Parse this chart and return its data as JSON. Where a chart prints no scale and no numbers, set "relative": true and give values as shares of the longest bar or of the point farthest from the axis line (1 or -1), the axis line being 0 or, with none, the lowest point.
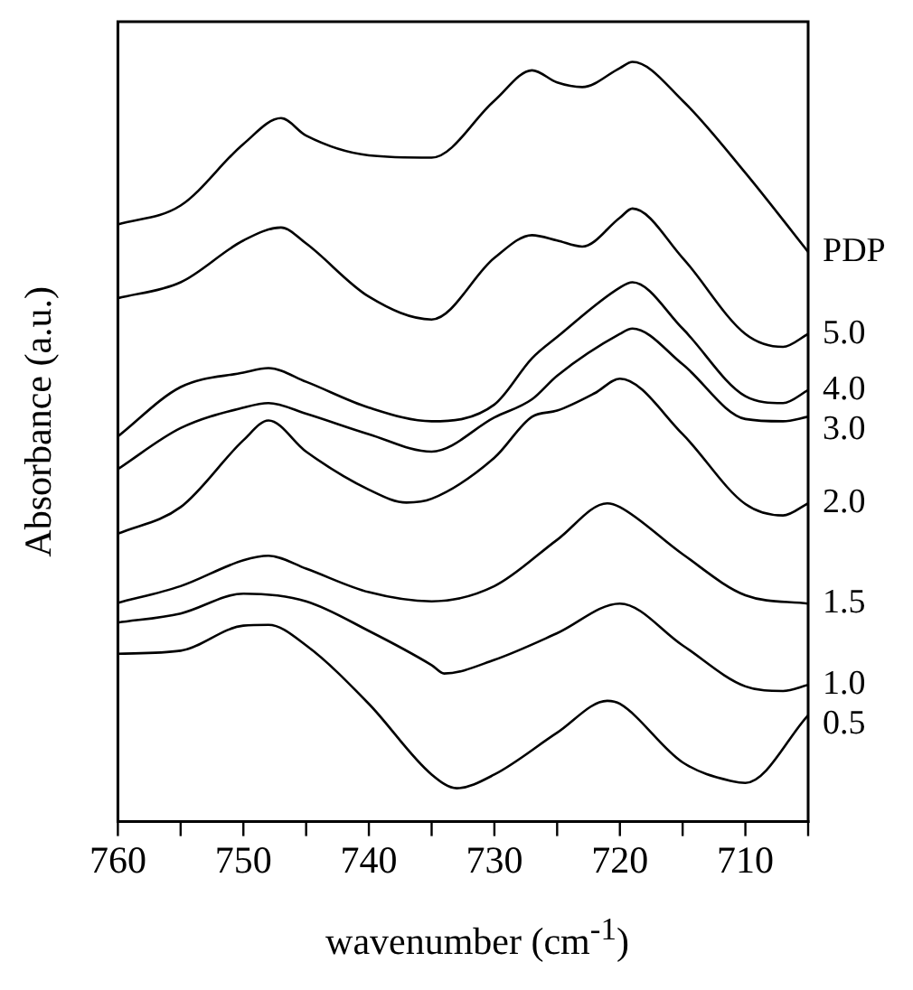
{
  "chart_data": {
    "type": "line",
    "relative": true,
    "xlabel": "wavenumber (cm$^{-1}$)",
    "ylabel": "Absorbance (a.u.)",
    "xlim": [
      760,
      705
    ],
    "xticks": [
      760,
      {
        "value": 755,
        "label": null
      },
      750,
      {
        "value": 745,
        "label": null
      },
      740,
      {
        "value": 735,
        "label": null
      },
      730,
      {
        "value": 725,
        "label": null
      },
      720,
      {
        "value": 715,
        "label": null
      },
      710,
      {
        "value": 705,
        "label": null
      }
    ],
    "grid": false,
    "legend": false,
    "marker": "none",
    "line_style": "solid",
    "series": [
      {
        "name": "PDP",
        "color": "#000000",
        "x": [
          760,
          755,
          750,
          747,
          745,
          740,
          735,
          730,
          727,
          725,
          723,
          720,
          719,
          715,
          710,
          705
        ],
        "values": [
          0.786,
          0.811,
          0.892,
          0.926,
          0.903,
          0.877,
          0.874,
          0.949,
          0.989,
          0.973,
          0.967,
          0.992,
          1.0,
          0.949,
          0.854,
          0.75
        ]
      },
      {
        "name": "5.0",
        "color": "#000000",
        "x": [
          760,
          755,
          750,
          747,
          745,
          740,
          735,
          730,
          727,
          725,
          723,
          720,
          719,
          715,
          710,
          707,
          705
        ],
        "values": [
          0.689,
          0.71,
          0.765,
          0.782,
          0.761,
          0.691,
          0.661,
          0.742,
          0.772,
          0.765,
          0.757,
          0.795,
          0.807,
          0.742,
          0.642,
          0.625,
          0.642
        ]
      },
      {
        "name": "4.0",
        "color": "#000000",
        "x": [
          760,
          755,
          750,
          748,
          745,
          740,
          735,
          730,
          727,
          725,
          720,
          719,
          715,
          710,
          707,
          705
        ],
        "values": [
          0.507,
          0.572,
          0.591,
          0.597,
          0.579,
          0.545,
          0.527,
          0.549,
          0.61,
          0.638,
          0.703,
          0.71,
          0.649,
          0.56,
          0.551,
          0.568
        ]
      },
      {
        "name": "3.0",
        "color": "#000000",
        "x": [
          760,
          755,
          750,
          748,
          745,
          740,
          735,
          730,
          727,
          725,
          720,
          719,
          715,
          710,
          707,
          705
        ],
        "values": [
          0.464,
          0.518,
          0.545,
          0.551,
          0.537,
          0.51,
          0.487,
          0.532,
          0.556,
          0.587,
          0.642,
          0.649,
          0.602,
          0.53,
          0.527,
          0.533
        ]
      },
      {
        "name": "2.0",
        "color": "#000000",
        "x": [
          760,
          755,
          750,
          748,
          745,
          740,
          737,
          735,
          730,
          727,
          725,
          722,
          720,
          715,
          710,
          707,
          705
        ],
        "values": [
          0.379,
          0.414,
          0.502,
          0.528,
          0.487,
          0.437,
          0.42,
          0.425,
          0.479,
          0.533,
          0.541,
          0.564,
          0.583,
          0.51,
          0.418,
          0.403,
          0.419
        ]
      },
      {
        "name": "1.5",
        "color": "#000000",
        "x": [
          760,
          755,
          750,
          748,
          745,
          740,
          735,
          730,
          725,
          721,
          720,
          715,
          710,
          705
        ],
        "values": [
          0.288,
          0.31,
          0.344,
          0.35,
          0.333,
          0.302,
          0.29,
          0.31,
          0.371,
          0.419,
          0.414,
          0.352,
          0.298,
          0.287
        ]
      },
      {
        "name": "1.0",
        "color": "#000000",
        "x": [
          760,
          755,
          750,
          745,
          740,
          735,
          734,
          730,
          725,
          720,
          715,
          710,
          707,
          705
        ],
        "values": [
          0.262,
          0.274,
          0.3,
          0.29,
          0.251,
          0.206,
          0.195,
          0.213,
          0.248,
          0.287,
          0.232,
          0.178,
          0.172,
          0.18
        ]
      },
      {
        "name": "0.5",
        "color": "#000000",
        "x": [
          760,
          755,
          750,
          748,
          745,
          740,
          735,
          733,
          730,
          725,
          721,
          720,
          715,
          711,
          710,
          705
        ],
        "values": [
          0.221,
          0.225,
          0.258,
          0.259,
          0.232,
          0.155,
          0.062,
          0.044,
          0.062,
          0.117,
          0.159,
          0.155,
          0.078,
          0.053,
          0.051,
          0.14
        ]
      }
    ]
  }
}
